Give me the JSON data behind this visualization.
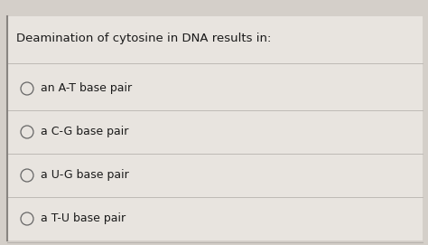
{
  "title": "Deamination of cytosine in DNA results in:",
  "options": [
    "an A-T base pair",
    "a C-G base pair",
    "a U-G base pair",
    "a T-U base pair"
  ],
  "bg_color": "#d4cfc9",
  "card_color": "#e8e4df",
  "title_fontsize": 9.5,
  "option_fontsize": 9.0,
  "title_color": "#1a1a1a",
  "option_color": "#1a1a1a",
  "circle_color": "#666666",
  "line_color": "#b8b3ae",
  "left_border_color": "#888480",
  "figsize": [
    4.74,
    2.71
  ],
  "dpi": 100
}
